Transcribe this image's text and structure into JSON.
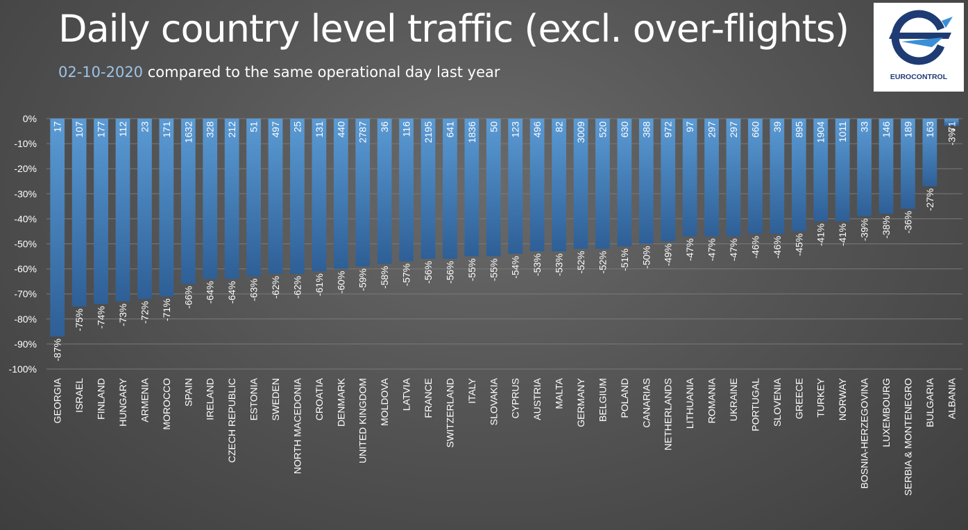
{
  "title": "Daily country level traffic (excl. over-flights)",
  "subtitle": {
    "date": "02-10-2020",
    "text": " compared to the same operational day last year"
  },
  "logo": {
    "text": "EUROCONTROL",
    "icon": "eurocontrol-logo"
  },
  "colors": {
    "bar_top": "#5b9bd5",
    "bar_bottom": "#2e5f96",
    "grid": "#7a7a7a",
    "text": "#ffffff",
    "date": "#9ec3e6"
  },
  "chart_data": {
    "type": "bar",
    "categories": [
      "GEORGIA",
      "ISRAEL",
      "FINLAND",
      "HUNGARY",
      "ARMENIA",
      "MOROCCO",
      "SPAIN",
      "IRELAND",
      "CZECH REPUBLIC",
      "ESTONIA",
      "SWEDEN",
      "NORTH MACEDONIA",
      "CROATIA",
      "DENMARK",
      "UNITED KINGDOM",
      "MOLDOVA",
      "LATVIA",
      "FRANCE",
      "SWITZERLAND",
      "ITALY",
      "SLOVAKIA",
      "CYPRUS",
      "AUSTRIA",
      "MALTA",
      "GERMANY",
      "BELGIUM",
      "POLAND",
      "CANARIAS",
      "NETHERLANDS",
      "LITHUANIA",
      "ROMANIA",
      "UKRAINE",
      "PORTUGAL",
      "SLOVENIA",
      "GREECE",
      "TURKEY",
      "NORWAY",
      "BOSNIA-HERZEGOVINA",
      "LUXEMBOURG",
      "SERBIA & MONTENEGRO",
      "BULGARIA",
      "ALBANIA"
    ],
    "values": [
      -87,
      -75,
      -74,
      -73,
      -72,
      -71,
      -66,
      -64,
      -64,
      -63,
      -62,
      -62,
      -61,
      -60,
      -59,
      -58,
      -57,
      -56,
      -56,
      -55,
      -55,
      -54,
      -53,
      -53,
      -52,
      -52,
      -51,
      -50,
      -49,
      -47,
      -47,
      -47,
      -46,
      -46,
      -45,
      -41,
      -41,
      -39,
      -38,
      -36,
      -27,
      -3
    ],
    "value_labels": [
      "-87%",
      "-75%",
      "-74%",
      "-73%",
      "-72%",
      "-71%",
      "-66%",
      "-64%",
      "-64%",
      "-63%",
      "-62%",
      "-62%",
      "-61%",
      "-60%",
      "-59%",
      "-58%",
      "-57%",
      "-56%",
      "-56%",
      "-55%",
      "-55%",
      "-54%",
      "-53%",
      "-53%",
      "-52%",
      "-52%",
      "-51%",
      "-50%",
      "-49%",
      "-47%",
      "-47%",
      "-47%",
      "-46%",
      "-46%",
      "-45%",
      "-41%",
      "-41%",
      "-39%",
      "-38%",
      "-36%",
      "-27%",
      "-3%"
    ],
    "flights": [
      "17",
      "107",
      "177",
      "112",
      "23",
      "171",
      "1632",
      "328",
      "212",
      "51",
      "497",
      "25",
      "131",
      "440",
      "2787",
      "36",
      "116",
      "2195",
      "641",
      "1836",
      "50",
      "123",
      "496",
      "82",
      "3009",
      "520",
      "630",
      "388",
      "972",
      "97",
      "297",
      "297",
      "660",
      "39",
      "895",
      "1904",
      "1011",
      "33",
      "146",
      "189",
      "163",
      "71"
    ],
    "y_ticks": [
      "0%",
      "-10%",
      "-20%",
      "-30%",
      "-40%",
      "-50%",
      "-60%",
      "-70%",
      "-80%",
      "-90%",
      "-100%"
    ],
    "ylim": [
      -100,
      0
    ],
    "grid": true
  }
}
